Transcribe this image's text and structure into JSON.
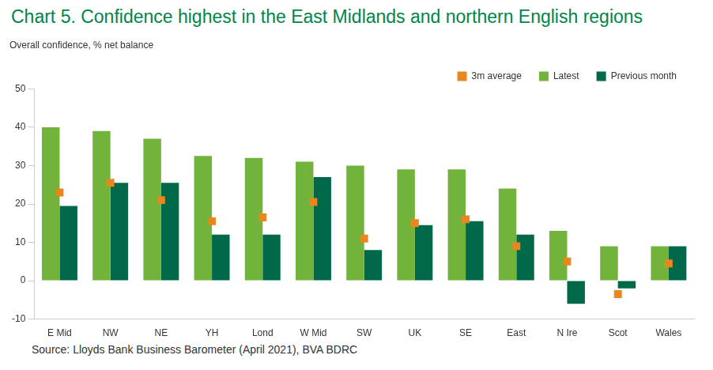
{
  "chart_data": {
    "type": "bar",
    "title": "Chart 5. Confidence highest in the East Midlands and northern English regions",
    "ylabel": "Overall confidence, % net balance",
    "source": "Source: Lloyds Bank Business Barometer (April 2021), BVA BDRC",
    "categories": [
      "E Mid",
      "NW",
      "NE",
      "YH",
      "Lond",
      "W Mid",
      "SW",
      "UK",
      "SE",
      "East",
      "N Ire",
      "Scot",
      "Wales"
    ],
    "series": [
      {
        "name": "Latest",
        "type": "bar",
        "color": "#72b33b",
        "values": [
          40,
          39,
          37,
          32.5,
          32,
          31,
          30,
          29,
          29,
          24,
          13,
          9,
          9
        ]
      },
      {
        "name": "Previous month",
        "type": "bar",
        "color": "#00694a",
        "values": [
          19.5,
          25.5,
          25.5,
          12,
          12,
          27,
          8,
          14.5,
          15.5,
          12,
          -6,
          -2,
          9
        ]
      },
      {
        "name": "3m average",
        "type": "scatter",
        "marker": "square",
        "color": "#e8871e",
        "values": [
          23,
          25.5,
          21,
          15.5,
          16.5,
          20.5,
          11,
          15,
          16,
          9,
          5,
          -3.5,
          4.5
        ]
      }
    ],
    "ylim": [
      -10,
      50
    ],
    "yticks": [
      -10,
      0,
      10,
      20,
      30,
      40,
      50
    ],
    "grid": false,
    "legend": "top-right"
  }
}
